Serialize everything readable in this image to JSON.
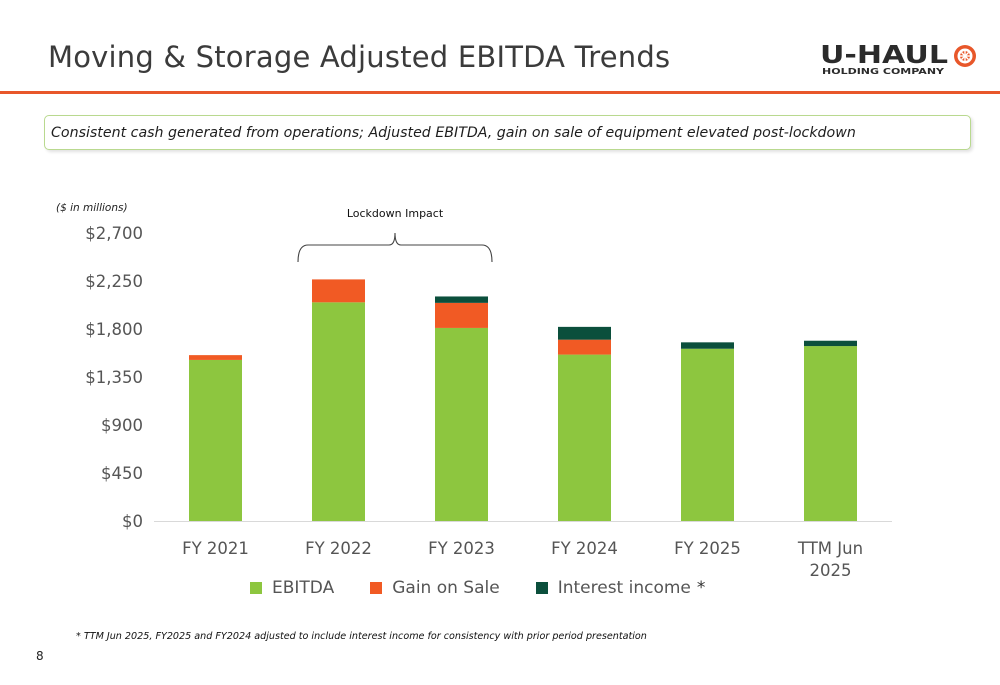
{
  "slide": {
    "title": "Moving & Storage Adjusted EBITDA Trends",
    "callout": "Consistent cash generated from operations; Adjusted EBITDA, gain on sale of equipment elevated post-lockdown",
    "footnote": "* TTM Jun 2025, FY2025 and FY2024 adjusted to include interest income for consistency with prior period presentation",
    "page_number": "8",
    "logo": {
      "wordmark": "U-HAUL",
      "subtitle": "HOLDING COMPANY",
      "icon": "wheel-icon"
    },
    "colors": {
      "accent": "#e8572a",
      "logo_dark": "#2b2b2b"
    }
  },
  "chart_data": {
    "type": "bar",
    "stacked": true,
    "units_label": "($ in millions)",
    "categories": [
      "FY 2021",
      "FY 2022",
      "FY 2023",
      "FY 2024",
      "FY 2025",
      "TTM Jun 2025"
    ],
    "series": [
      {
        "name": "EBITDA",
        "color": "#8dc63f",
        "values": [
          1510,
          2050,
          1810,
          1560,
          1615,
          1640
        ]
      },
      {
        "name": "Gain on Sale",
        "color": "#f15a24",
        "values": [
          45,
          215,
          235,
          140,
          0,
          0
        ]
      },
      {
        "name": "Interest income",
        "color": "#0b4f3c",
        "values": [
          0,
          0,
          60,
          120,
          60,
          50
        ]
      }
    ],
    "legend_asterisk": "*",
    "yticks": [
      0,
      450,
      900,
      1350,
      1800,
      2250,
      2700
    ],
    "ytick_labels": [
      "$0",
      "$450",
      "$900",
      "$1,350",
      "$1,800",
      "$2,250",
      "$2,700"
    ],
    "ylim": [
      0,
      2700
    ],
    "annotation": {
      "text": "Lockdown Impact",
      "spans": [
        "FY 2022",
        "FY 2023"
      ]
    },
    "grid": false,
    "legend_position": "bottom"
  }
}
